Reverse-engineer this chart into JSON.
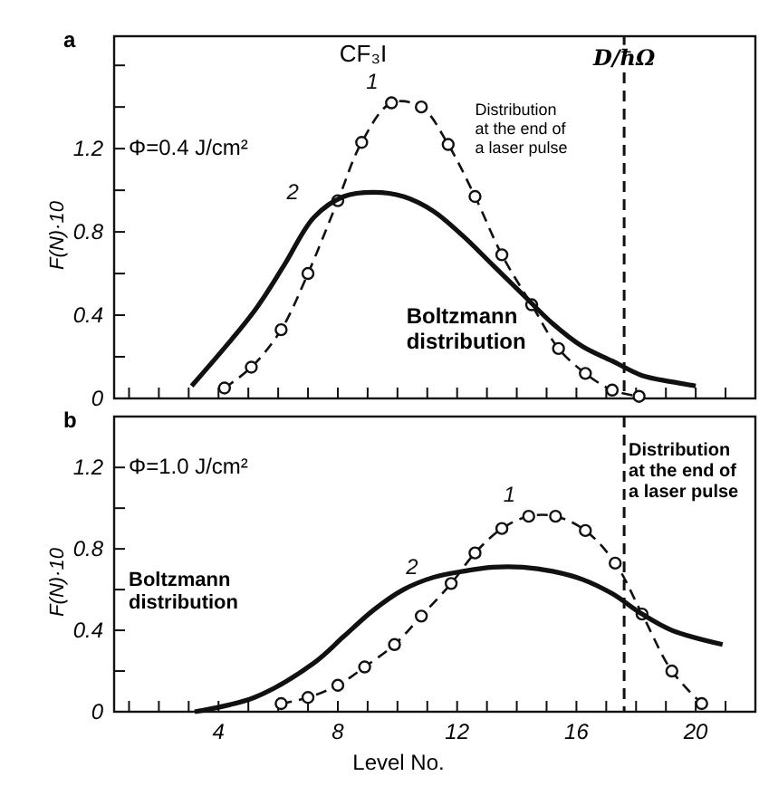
{
  "chart_data": [
    {
      "type": "line",
      "title": "a",
      "ylabel": "F(N)·10",
      "xlim": [
        0.5,
        22
      ],
      "ylim": [
        0,
        1.74
      ],
      "tick_labels": "y",
      "xticks": [
        {
          "value": 1,
          "label": null
        },
        {
          "value": 2,
          "label": null
        },
        {
          "value": 3,
          "label": null
        },
        {
          "value": 4,
          "label": null
        },
        {
          "value": 5,
          "label": null
        },
        {
          "value": 6,
          "label": null
        },
        {
          "value": 7,
          "label": null
        },
        {
          "value": 8,
          "label": null
        },
        {
          "value": 9,
          "label": null
        },
        {
          "value": 10,
          "label": null
        },
        {
          "value": 11,
          "label": null
        },
        {
          "value": 12,
          "label": null
        },
        {
          "value": 13,
          "label": null
        },
        {
          "value": 14,
          "label": null
        },
        {
          "value": 15,
          "label": null
        },
        {
          "value": 16,
          "label": null
        },
        {
          "value": 17,
          "label": null
        },
        {
          "value": 18,
          "label": null
        },
        {
          "value": 19,
          "label": null
        },
        {
          "value": 20,
          "label": null
        },
        {
          "value": 21,
          "label": null
        }
      ],
      "yticks": [
        {
          "value": 0,
          "label": "0"
        },
        {
          "value": 0.2,
          "label": null
        },
        {
          "value": 0.4,
          "label": "0.4"
        },
        {
          "value": 0.6,
          "label": null
        },
        {
          "value": 0.8,
          "label": "0.8"
        },
        {
          "value": 1.0,
          "label": null
        },
        {
          "value": 1.2,
          "label": "1.2"
        },
        {
          "value": 1.4,
          "label": null
        },
        {
          "value": 1.6,
          "label": null
        }
      ],
      "series": [
        {
          "name": "1",
          "color": "#111111",
          "line_style": "dashed",
          "marker": "circle",
          "x": [
            4.2,
            5.1,
            6.1,
            7.0,
            8.0,
            8.8,
            9.8,
            10.8,
            11.7,
            12.6,
            13.5,
            14.5,
            15.4,
            16.3,
            17.2,
            18.1
          ],
          "values": [
            0.05,
            0.15,
            0.33,
            0.6,
            0.95,
            1.23,
            1.42,
            1.4,
            1.22,
            0.97,
            0.69,
            0.45,
            0.24,
            0.12,
            0.04,
            0.01
          ]
        },
        {
          "name": "2",
          "color": "#111111",
          "line_style": "solid",
          "marker": "none",
          "x": [
            3.1,
            5.2,
            6.2,
            7.2,
            8.2,
            9.2,
            10.2,
            11.2,
            12.2,
            13.2,
            14.2,
            15.2,
            16.2,
            17.2,
            18.2,
            19.2,
            20.0
          ],
          "values": [
            0.06,
            0.42,
            0.64,
            0.87,
            0.97,
            0.99,
            0.97,
            0.9,
            0.78,
            0.64,
            0.5,
            0.36,
            0.25,
            0.18,
            0.11,
            0.08,
            0.06
          ]
        }
      ],
      "ref_lines": [
        {
          "axis": "x",
          "value": 17.6,
          "label": "D/ħΩ",
          "line_style": "dashed"
        }
      ],
      "annotations": [
        "CF₃I",
        "Φ=0.4 J/cm²",
        "Distribution at the end of a laser pulse",
        "Boltzmann distribution"
      ]
    },
    {
      "type": "line",
      "title": "b",
      "ylabel": "F(N)·10",
      "xlabel": "Level No.",
      "xlim": [
        0.5,
        22
      ],
      "ylim": [
        0,
        1.45
      ],
      "xticks": [
        {
          "value": 1,
          "label": null
        },
        {
          "value": 2,
          "label": null
        },
        {
          "value": 3,
          "label": null
        },
        {
          "value": 4,
          "label": "4"
        },
        {
          "value": 5,
          "label": null
        },
        {
          "value": 6,
          "label": null
        },
        {
          "value": 7,
          "label": null
        },
        {
          "value": 8,
          "label": "8"
        },
        {
          "value": 9,
          "label": null
        },
        {
          "value": 10,
          "label": null
        },
        {
          "value": 11,
          "label": null
        },
        {
          "value": 12,
          "label": "12"
        },
        {
          "value": 13,
          "label": null
        },
        {
          "value": 14,
          "label": null
        },
        {
          "value": 15,
          "label": null
        },
        {
          "value": 16,
          "label": "16"
        },
        {
          "value": 17,
          "label": null
        },
        {
          "value": 18,
          "label": null
        },
        {
          "value": 19,
          "label": null
        },
        {
          "value": 20,
          "label": "20"
        },
        {
          "value": 21,
          "label": null
        }
      ],
      "yticks": [
        {
          "value": 0,
          "label": "0"
        },
        {
          "value": 0.2,
          "label": null
        },
        {
          "value": 0.4,
          "label": "0.4"
        },
        {
          "value": 0.6,
          "label": null
        },
        {
          "value": 0.8,
          "label": "0.8"
        },
        {
          "value": 1.0,
          "label": null
        },
        {
          "value": 1.2,
          "label": "1.2"
        }
      ],
      "series": [
        {
          "name": "1",
          "color": "#111111",
          "line_style": "dashed",
          "marker": "circle",
          "x": [
            6.1,
            7.0,
            8.0,
            8.9,
            9.9,
            10.8,
            11.8,
            12.6,
            13.5,
            14.4,
            15.3,
            16.3,
            17.3,
            18.2,
            19.2,
            20.2
          ],
          "values": [
            0.04,
            0.07,
            0.13,
            0.22,
            0.33,
            0.47,
            0.63,
            0.78,
            0.9,
            0.96,
            0.96,
            0.89,
            0.73,
            0.48,
            0.2,
            0.04
          ]
        },
        {
          "name": "2",
          "color": "#111111",
          "line_style": "solid",
          "marker": "none",
          "x": [
            3.2,
            5.2,
            7.2,
            8.2,
            9.2,
            10.2,
            11.2,
            12.2,
            13.2,
            14.2,
            15.2,
            16.2,
            17.2,
            18.2,
            19.2,
            20.9
          ],
          "values": [
            0,
            0.07,
            0.24,
            0.37,
            0.5,
            0.6,
            0.66,
            0.69,
            0.71,
            0.71,
            0.69,
            0.65,
            0.58,
            0.48,
            0.4,
            0.33
          ]
        }
      ],
      "ref_lines": [
        {
          "axis": "x",
          "value": 17.6,
          "label": null,
          "line_style": "dashed"
        }
      ],
      "annotations": [
        "Φ=1.0 J/cm²",
        "Distribution at the end of a laser pulse",
        "Boltzmann distribution"
      ]
    }
  ]
}
